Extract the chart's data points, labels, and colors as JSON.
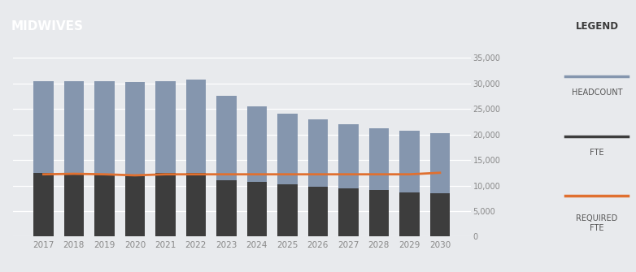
{
  "years": [
    2017,
    2018,
    2019,
    2020,
    2021,
    2022,
    2023,
    2024,
    2025,
    2026,
    2027,
    2028,
    2029,
    2030
  ],
  "headcount": [
    30500,
    30500,
    30500,
    30200,
    30500,
    30800,
    27500,
    25500,
    24000,
    23000,
    22000,
    21200,
    20700,
    20200
  ],
  "fte": [
    12500,
    12500,
    12300,
    11800,
    12500,
    12500,
    11000,
    10700,
    10200,
    9800,
    9500,
    9100,
    8700,
    8500
  ],
  "required_fte": [
    12200,
    12300,
    12200,
    12000,
    12200,
    12200,
    12200,
    12200,
    12200,
    12200,
    12200,
    12200,
    12200,
    12500
  ],
  "title": "MIDWIVES",
  "legend_title": "LEGEND",
  "legend_headcount": "HEADCOUNT",
  "legend_fte": "FTE",
  "legend_required_fte": "REQUIRED\nFTE",
  "bar_headcount_color": "#8596ae",
  "bar_fte_color": "#3d3d3d",
  "required_fte_color": "#e07030",
  "title_bg": "#4a4a4a",
  "title_fg": "#ffffff",
  "legend_bg": "#d0d5db",
  "legend_header_bg": "#8596ae",
  "chart_bg": "#e8eaed",
  "ylim": [
    0,
    37000
  ],
  "yticks": [
    0,
    5000,
    10000,
    15000,
    20000,
    25000,
    30000,
    35000
  ]
}
